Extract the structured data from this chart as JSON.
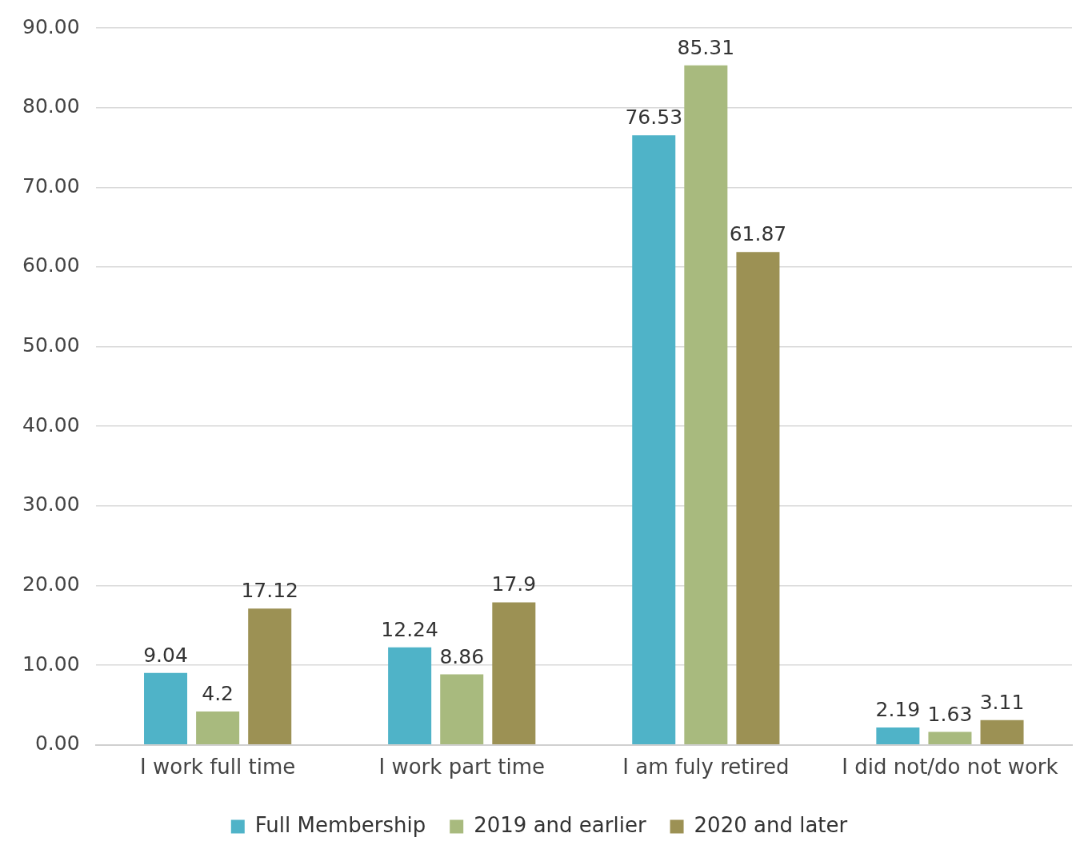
{
  "chart_data": {
    "type": "bar",
    "categories": [
      "I work full time",
      "I work part time",
      "I am fuly retired",
      "I did not/do not work"
    ],
    "series": [
      {
        "name": "Full Membership",
        "color": "#4fb3c8",
        "values": [
          9.04,
          12.24,
          76.53,
          2.19
        ]
      },
      {
        "name": "2019 and earlier",
        "color": "#a8ba7e",
        "values": [
          4.2,
          8.86,
          85.31,
          1.63
        ]
      },
      {
        "name": "2020 and later",
        "color": "#9c9154",
        "values": [
          17.12,
          17.9,
          61.87,
          3.11
        ]
      }
    ],
    "ylim": [
      0,
      90
    ],
    "yticks": [
      {
        "value": 0,
        "label": "0.00"
      },
      {
        "value": 10,
        "label": "10.00"
      },
      {
        "value": 20,
        "label": "20.00"
      },
      {
        "value": 30,
        "label": "30.00"
      },
      {
        "value": 40,
        "label": "40.00"
      },
      {
        "value": 50,
        "label": "50.00"
      },
      {
        "value": 60,
        "label": "60.00"
      },
      {
        "value": 70,
        "label": "70.00"
      },
      {
        "value": 80,
        "label": "80.00"
      },
      {
        "value": 90,
        "label": "90.00"
      }
    ],
    "grid": "y",
    "legend": "bottom",
    "data_labels": true
  }
}
